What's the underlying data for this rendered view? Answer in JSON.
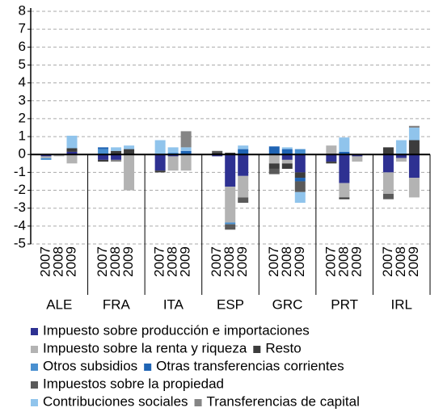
{
  "chart_data": {
    "type": "bar",
    "stacked": true,
    "groups": [
      {
        "name": "ALE",
        "categories": [
          "2007",
          "2008",
          "2009"
        ]
      },
      {
        "name": "FRA",
        "categories": [
          "2007",
          "2008",
          "2009"
        ]
      },
      {
        "name": "ITA",
        "categories": [
          "2007",
          "2008",
          "2009"
        ]
      },
      {
        "name": "ESP",
        "categories": [
          "2007",
          "2008",
          "2009"
        ]
      },
      {
        "name": "GRC",
        "categories": [
          "2007",
          "2008",
          "2009"
        ]
      },
      {
        "name": "PRT",
        "categories": [
          "2007",
          "2008",
          "2009"
        ]
      },
      {
        "name": "IRL",
        "categories": [
          "2007",
          "2008",
          "2009"
        ]
      }
    ],
    "series": [
      {
        "name": "Impuesto sobre producción e importaciones",
        "color": "#2e3192",
        "values": [
          -0.1,
          0,
          0.15,
          -0.3,
          -0.3,
          0,
          -0.9,
          -0.1,
          0,
          -0.1,
          -1.8,
          -1.2,
          0,
          -0.3,
          -1.0,
          -0.4,
          -1.6,
          -0.1,
          -1.0,
          -0.2,
          -1.3
        ]
      },
      {
        "name": "Impuesto sobre la renta y riqueza",
        "color": "#b3b3b3",
        "values": [
          -0.1,
          -0.1,
          -0.5,
          0,
          0,
          -2.0,
          0,
          -0.8,
          -0.9,
          0,
          -2.0,
          -1.2,
          -0.5,
          -0.2,
          0,
          0.5,
          -0.8,
          -0.3,
          -1.2,
          -0.2,
          -1.1
        ]
      },
      {
        "name": "Resto",
        "color": "#3c3c3c",
        "values": [
          0,
          0,
          0.2,
          -0.1,
          0.2,
          0.3,
          -0.1,
          0,
          0,
          0.1,
          0.1,
          0,
          -0.3,
          -0.3,
          -0.3,
          -0.1,
          -0.1,
          0,
          0.4,
          0,
          0.8
        ]
      },
      {
        "name": "Otros subsidios",
        "color": "#4a90d0",
        "values": [
          -0.1,
          0,
          0,
          0.3,
          0,
          0,
          0,
          0.1,
          0,
          0,
          -0.1,
          0,
          0,
          0,
          0.3,
          0,
          0,
          0,
          0,
          0,
          0
        ]
      },
      {
        "name": "Otras transferencias corrientes",
        "color": "#1f64b4",
        "values": [
          0,
          0,
          0,
          0.1,
          0,
          0,
          0,
          0,
          0.2,
          0,
          0,
          0.3,
          0.45,
          0.3,
          -0.2,
          0,
          0.15,
          0,
          0,
          0,
          0
        ]
      },
      {
        "name": "Impuestos sobre la propiedad",
        "color": "#5a5a5a",
        "values": [
          0,
          0,
          0,
          0,
          0,
          0,
          0,
          0,
          0,
          0.1,
          -0.3,
          -0.3,
          -0.3,
          0,
          -0.6,
          0,
          0,
          0,
          -0.3,
          0,
          0
        ]
      },
      {
        "name": "Contribuciones sociales",
        "color": "#90c4ec",
        "values": [
          0,
          0,
          0.7,
          0,
          0.2,
          0.2,
          0.8,
          0.3,
          0.2,
          0,
          0,
          0.2,
          0,
          0.1,
          -0.6,
          0,
          0.8,
          0,
          0,
          0.8,
          0.7
        ]
      },
      {
        "name": "Transferencias de capital",
        "color": "#858585",
        "values": [
          0,
          0,
          0,
          0,
          -0.1,
          0,
          0,
          0,
          0.9,
          0,
          0,
          0,
          0,
          0,
          0,
          0,
          0,
          0,
          0,
          0,
          0.1
        ]
      }
    ],
    "ylim": [
      -5,
      8
    ],
    "yticks": [
      -5,
      -4,
      -3,
      -2,
      -1,
      0,
      1,
      2,
      3,
      4,
      5,
      6,
      7,
      8
    ],
    "grid": true
  }
}
